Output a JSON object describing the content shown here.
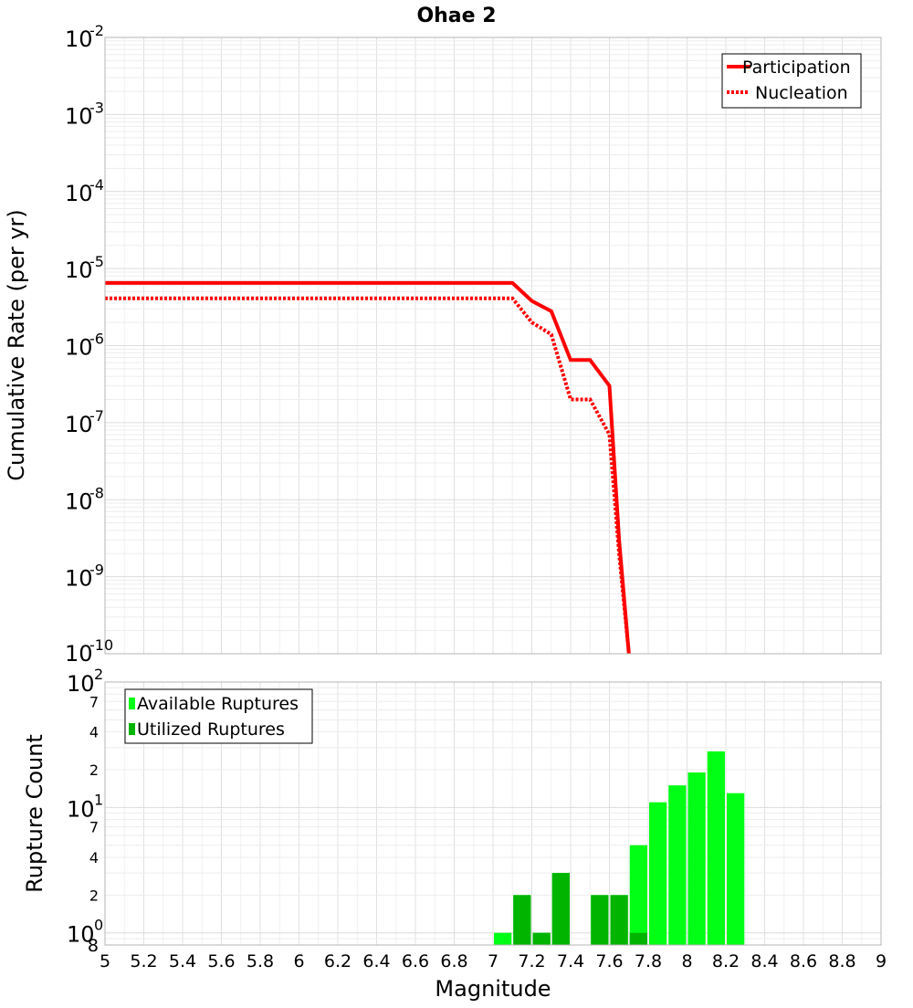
{
  "title": "Ohae 2",
  "colors": {
    "participation": "#ff0000",
    "nucleation": "#ff0000",
    "available": "#00ff14",
    "utilized": "#00b400",
    "grid": "#e6e6e6",
    "plot_border": "#b4b4b4"
  },
  "top_panel": {
    "ylabel": "Cumulative Rate (per yr)",
    "y_tick_exponents": [
      "-2",
      "-3",
      "-4",
      "-5",
      "-6",
      "-7",
      "-8",
      "-9",
      "-10"
    ],
    "y_tick_base": "10"
  },
  "bottom_panel": {
    "ylabel": "Rupture Count",
    "major_ticks": [
      {
        "base": "10",
        "exp": "2"
      },
      {
        "base": "10",
        "exp": "1"
      },
      {
        "base": "10",
        "exp": "0"
      }
    ],
    "minor_ticks": [
      {
        "label": "7",
        "value": 70
      },
      {
        "label": "4",
        "value": 40
      },
      {
        "label": "2",
        "value": 20
      },
      {
        "label": "7",
        "value": 7
      },
      {
        "label": "4",
        "value": 4
      },
      {
        "label": "2",
        "value": 2
      }
    ],
    "corner_label": "8"
  },
  "xlabel": "Magnitude",
  "x_ticks": [
    "5",
    "5.2",
    "5.4",
    "5.6",
    "5.8",
    "6",
    "6.2",
    "6.4",
    "6.6",
    "6.8",
    "7",
    "7.2",
    "7.4",
    "7.6",
    "7.8",
    "8",
    "8.2",
    "8.4",
    "8.6",
    "8.8",
    "9"
  ],
  "legend_top": {
    "participation": "Participation",
    "nucleation": "Nucleation"
  },
  "legend_bottom": {
    "available": "Available Ruptures",
    "utilized": "Utilized Ruptures"
  },
  "chart_data": [
    {
      "type": "line",
      "title": "Ohae 2",
      "xlabel": "",
      "ylabel": "Cumulative Rate (per yr)",
      "y_scale": "log",
      "xlim": [
        5,
        9
      ],
      "ylim": [
        1e-10,
        0.01
      ],
      "legend": "top-right",
      "grid": true,
      "series": [
        {
          "name": "Participation",
          "style": "solid",
          "x": [
            5.0,
            7.1,
            7.2,
            7.3,
            7.4,
            7.5,
            7.6,
            7.65,
            7.7
          ],
          "y": [
            6.5e-06,
            6.5e-06,
            3.8e-06,
            2.8e-06,
            6.5e-07,
            6.5e-07,
            3e-07,
            3e-09,
            1e-10
          ]
        },
        {
          "name": "Nucleation",
          "style": "dotted",
          "x": [
            5.0,
            7.1,
            7.2,
            7.3,
            7.4,
            7.5,
            7.6,
            7.65,
            7.7
          ],
          "y": [
            4.1e-06,
            4.1e-06,
            2e-06,
            1.4e-06,
            2e-07,
            2e-07,
            7e-08,
            2e-09,
            1e-10
          ]
        }
      ]
    },
    {
      "type": "bar",
      "xlabel": "Magnitude",
      "ylabel": "Rupture Count",
      "y_scale": "log",
      "xlim": [
        5,
        9
      ],
      "ylim": [
        0.8,
        100
      ],
      "legend": "top-left",
      "grid": true,
      "bin_width": 0.1,
      "series": [
        {
          "name": "Available Ruptures",
          "x": [
            7.0,
            7.1,
            7.2,
            7.3,
            7.5,
            7.6,
            7.7,
            7.8,
            7.9,
            8.0,
            8.1,
            8.2
          ],
          "values": [
            1,
            2,
            1,
            3,
            2,
            2,
            5,
            11,
            15,
            19,
            28,
            13
          ]
        },
        {
          "name": "Utilized Ruptures",
          "x": [
            7.1,
            7.2,
            7.3,
            7.5,
            7.6,
            7.7
          ],
          "values": [
            2,
            1,
            3,
            2,
            2,
            1
          ]
        }
      ]
    }
  ]
}
